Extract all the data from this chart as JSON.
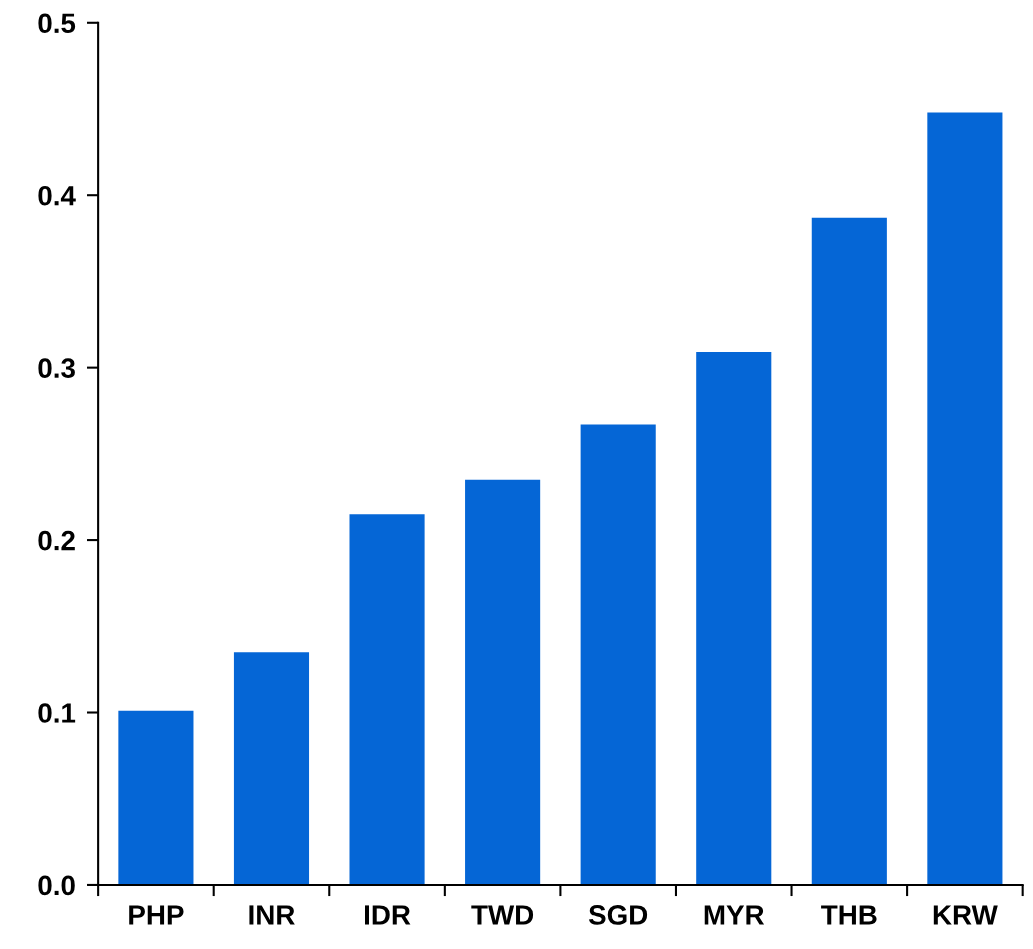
{
  "chart_data": {
    "type": "bar",
    "categories": [
      "PHP",
      "INR",
      "IDR",
      "TWD",
      "SGD",
      "MYR",
      "THB",
      "KRW"
    ],
    "values": [
      0.101,
      0.135,
      0.215,
      0.235,
      0.267,
      0.309,
      0.387,
      0.448
    ],
    "color": "#0566d6",
    "ylim": [
      0,
      0.5
    ],
    "yticks": [
      {
        "value": 0,
        "label": "0.0"
      },
      {
        "value": 0.1,
        "label": "0.1"
      },
      {
        "value": 0.2,
        "label": "0.2"
      },
      {
        "value": 0.3,
        "label": "0.3"
      },
      {
        "value": 0.4,
        "label": "0.4"
      },
      {
        "value": 0.5,
        "label": "0.5"
      }
    ],
    "grid": false
  }
}
